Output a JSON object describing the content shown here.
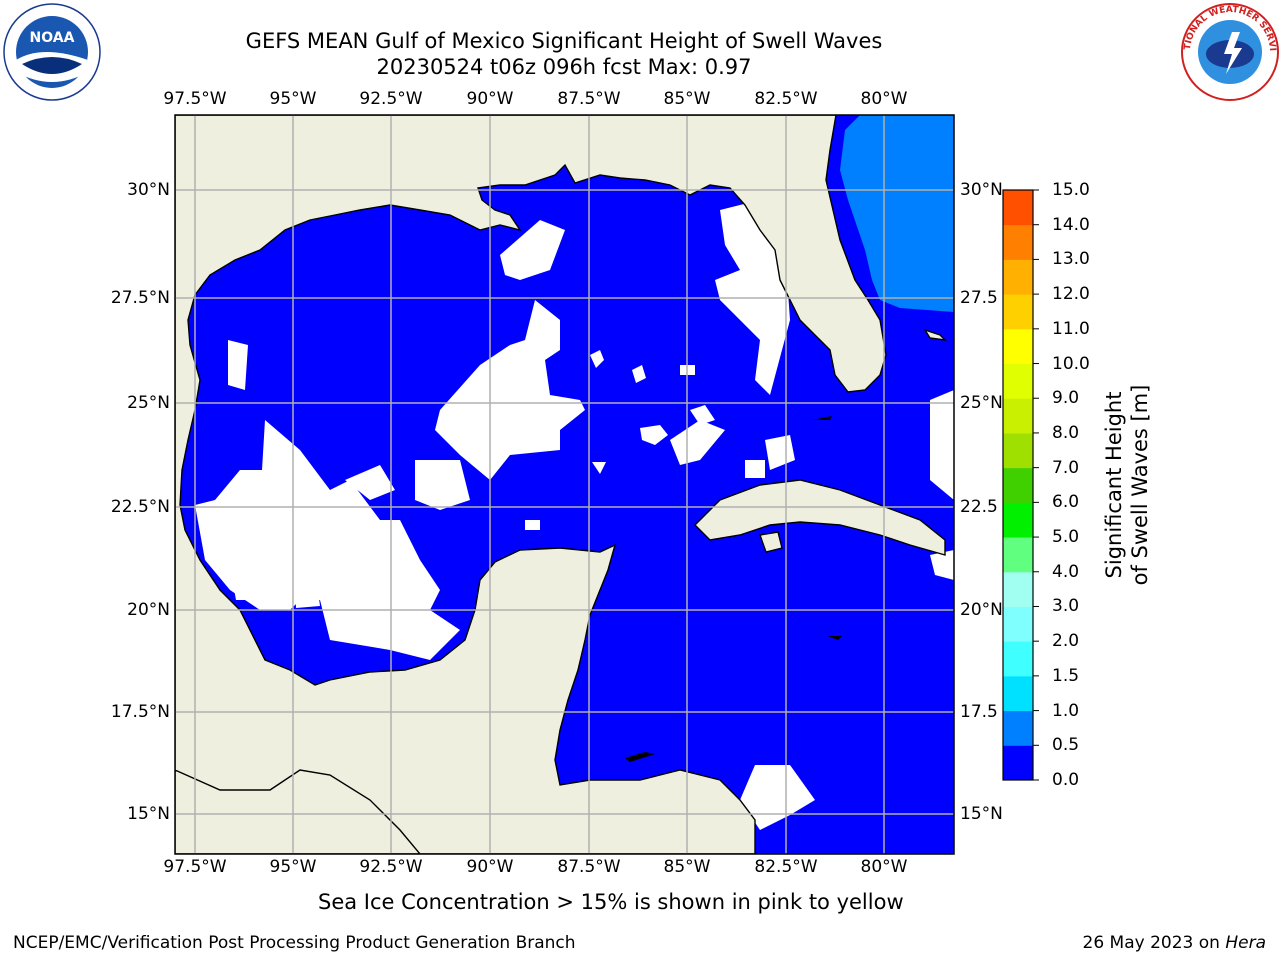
{
  "header": {
    "title_line1": "GEFS MEAN Gulf of Mexico Significant Height of Swell Waves",
    "title_line2": "20230524 t06z 096h fcst   Max: 0.97"
  },
  "map": {
    "lon_labels": [
      "97.5°W",
      "95°W",
      "92.5°W",
      "90°W",
      "87.5°W",
      "85°W",
      "82.5°W",
      "80°W"
    ],
    "lat_labels": [
      "30°N",
      "27.5°N",
      "25°N",
      "22.5°N",
      "20°N",
      "17.5°N",
      "15°N"
    ],
    "right_lat_labels": [
      "30°N",
      "27.5",
      "25°N",
      "22.5",
      "20°N",
      "17.5",
      "15°N"
    ],
    "colors": {
      "land": "#efefdf",
      "sea": "#0000ff",
      "sea_light": "#0080ff",
      "no_data": "#ffffff",
      "grid": "#b0b0b0",
      "coast": "#000000"
    }
  },
  "colorbar": {
    "title": "Significant Height of Swell Waves [m]",
    "ticks": [
      "15.0",
      "14.0",
      "13.0",
      "12.0",
      "11.0",
      "10.0",
      "9.0",
      "8.0",
      "7.0",
      "6.0",
      "5.0",
      "4.0",
      "3.0",
      "2.0",
      "1.5",
      "1.0",
      "0.5",
      "0.0"
    ],
    "colors": [
      "#0000ff",
      "#0080ff",
      "#00e0ff",
      "#40ffff",
      "#80ffff",
      "#a0fff0",
      "#60ff80",
      "#00f000",
      "#40d000",
      "#a0e000",
      "#c8f000",
      "#e0ff00",
      "#ffff00",
      "#ffd000",
      "#ffb000",
      "#ff8000",
      "#ff5000",
      "#ff2000",
      "#ff0000"
    ]
  },
  "footer": {
    "sea_ice_note": "Sea Ice Concentration > 15% is shown in pink to yellow",
    "left": "NCEP/EMC/Verification Post Processing Product Generation Branch",
    "right_date": "26 May 2023 on ",
    "right_machine": "Hera"
  },
  "logos": {
    "left": "NOAA",
    "right": "NATIONAL WEATHER SERVICE"
  }
}
